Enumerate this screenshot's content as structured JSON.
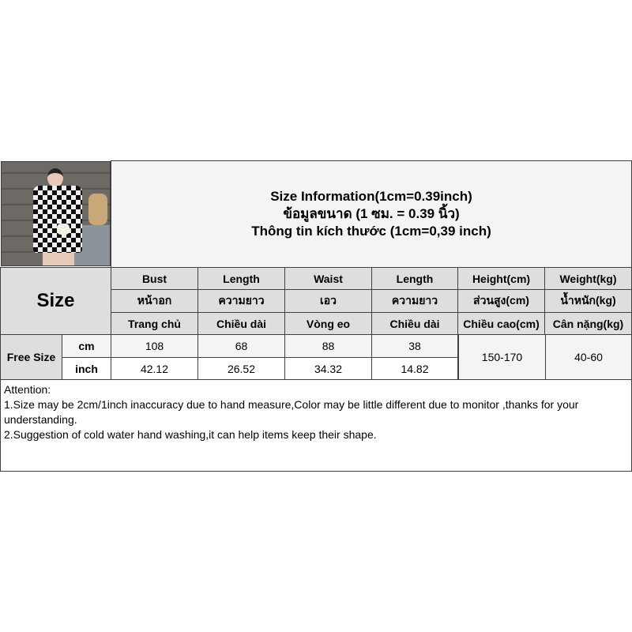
{
  "title": {
    "line1": "Size Information(1cm=0.39inch)",
    "line2": "ข้อมูลขนาด (1 ซม. = 0.39 นิ้ว)",
    "line3": "Thông tin kích thước (1cm=0,39 inch)"
  },
  "size_label": "Size",
  "columns": [
    {
      "en": "Bust",
      "th": "หน้าอก",
      "vi": "Trang chủ"
    },
    {
      "en": "Length",
      "th": "ความยาว",
      "vi": "Chiều dài"
    },
    {
      "en": "Waist",
      "th": "เอว",
      "vi": "Vòng eo"
    },
    {
      "en": "Length",
      "th": "ความยาว",
      "vi": "Chiều dài"
    },
    {
      "en": "Height(cm)",
      "th": "ส่วนสูง(cm)",
      "vi": "Chiều cao(cm)"
    },
    {
      "en": "Weight(kg)",
      "th": "น้ำหนัก(kg)",
      "vi": "Cân nặng(kg)"
    }
  ],
  "rows": {
    "size": "Free Size",
    "cm": {
      "unit": "cm",
      "values": [
        "108",
        "68",
        "88",
        "38"
      ]
    },
    "inch": {
      "unit": "inch",
      "values": [
        "42.12",
        "26.52",
        "34.32",
        "14.82"
      ]
    },
    "height": "150-170",
    "weight": "40-60"
  },
  "notes": [
    "Attention:",
    "1.Size may be 2cm/1inch inaccuracy due to hand measure,Color may be little different due to monitor ,thanks for your understanding.",
    "2.Suggestion of cold water hand washing,it can help items keep their shape."
  ]
}
